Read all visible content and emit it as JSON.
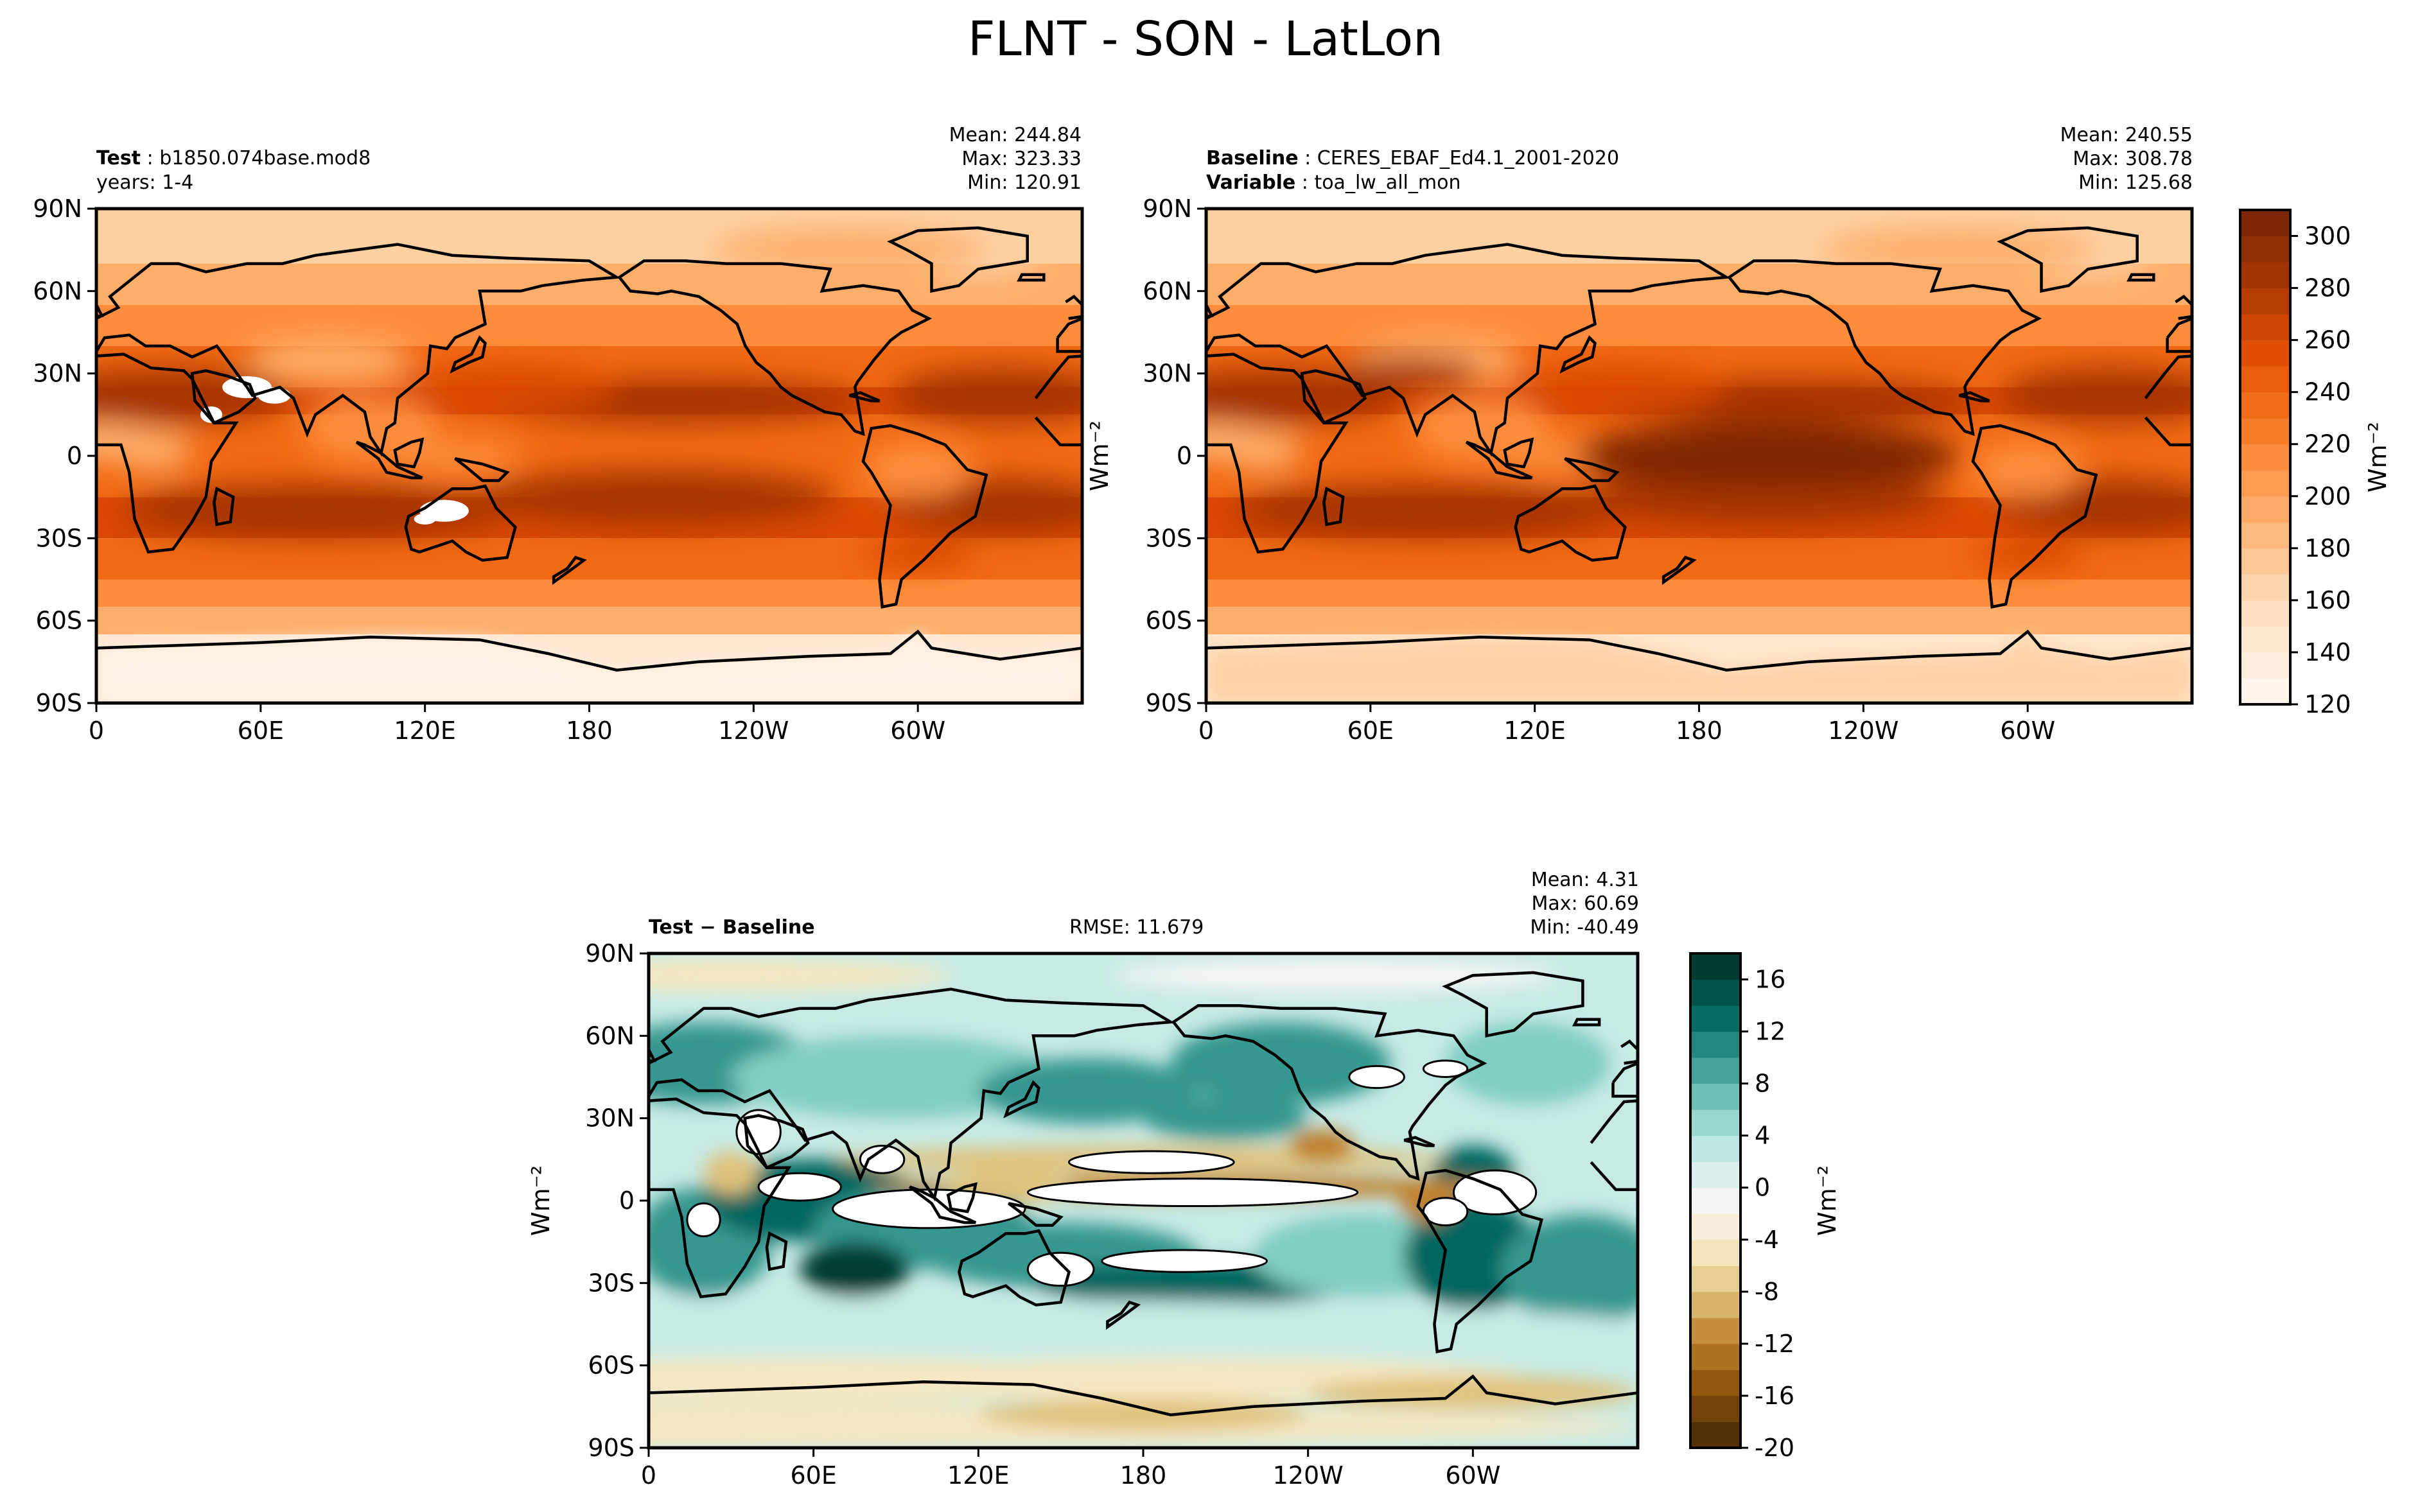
{
  "title": "FLNT - SON - LatLon",
  "panels": {
    "test": {
      "label_bold": "Test",
      "label_value": "b1850.074base.mod8",
      "line2": "years: 1-4",
      "mean": "Mean: 244.84",
      "max": "Max: 323.33",
      "min": "Min: 120.91"
    },
    "baseline": {
      "label_bold": "Baseline",
      "label_value": "CERES_EBAF_Ed4.1_2001-2020",
      "line2_bold": "Variable",
      "line2_value": "toa_lw_all_mon",
      "mean": "Mean: 240.55",
      "max": "Max: 308.78",
      "min": "Min: 125.68"
    },
    "diff": {
      "label": "Test − Baseline",
      "rmse": "RMSE: 11.679",
      "mean": "Mean:  4.31",
      "max": "Max: 60.69",
      "min": "Min: -40.49"
    }
  },
  "axis_units_label": "Wm⁻²",
  "colors": {
    "flnt_ramp": [
      "#fff5eb",
      "#fee6ce",
      "#fdd0a2",
      "#fdae6b",
      "#fd8d3c",
      "#f16913",
      "#d94801",
      "#a63603",
      "#7f2704"
    ],
    "diff_ramp": [
      "#543005",
      "#8c510a",
      "#bf812d",
      "#dfc27d",
      "#f6e8c3",
      "#f5f5f5",
      "#c7eae5",
      "#80cdc1",
      "#35978f",
      "#01665e",
      "#003c30"
    ],
    "masked": "#ffffff"
  },
  "chart_data": [
    {
      "type": "heatmap",
      "name": "test-map",
      "x_ticks": [
        "0",
        "60E",
        "120E",
        "180",
        "120W",
        "60W"
      ],
      "y_ticks": [
        "90N",
        "60N",
        "30N",
        "0",
        "30S",
        "60S",
        "90S"
      ],
      "xlim": [
        0,
        360
      ],
      "ylim": [
        -90,
        90
      ]
    },
    {
      "type": "heatmap",
      "name": "baseline-map",
      "x_ticks": [
        "0",
        "60E",
        "120E",
        "180",
        "120W",
        "60W"
      ],
      "y_ticks": [
        "90N",
        "60N",
        "30N",
        "0",
        "30S",
        "60S",
        "90S"
      ],
      "xlim": [
        0,
        360
      ],
      "ylim": [
        -90,
        90
      ],
      "colorbar": {
        "range": [
          120,
          310
        ],
        "ticks": [
          "120",
          "140",
          "160",
          "180",
          "200",
          "220",
          "240",
          "260",
          "280",
          "300"
        ]
      }
    },
    {
      "type": "heatmap",
      "name": "diff-map",
      "x_ticks": [
        "0",
        "60E",
        "120E",
        "180",
        "120W",
        "60W"
      ],
      "y_ticks": [
        "90N",
        "60N",
        "30N",
        "0",
        "30S",
        "60S",
        "90S"
      ],
      "xlim": [
        0,
        360
      ],
      "ylim": [
        -90,
        90
      ],
      "colorbar": {
        "range": [
          -20,
          18
        ],
        "ticks": [
          "-20",
          "-16",
          "-12",
          "-8",
          "-4",
          "0",
          "4",
          "8",
          "12",
          "16"
        ]
      }
    }
  ]
}
